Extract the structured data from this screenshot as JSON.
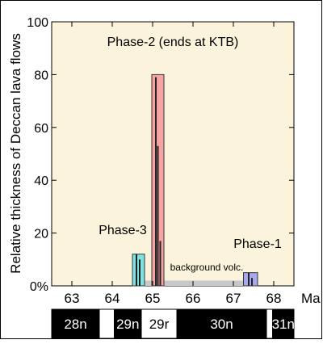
{
  "chart_data": {
    "type": "bar",
    "ylabel": "Relative thickness of Deccan lava flows",
    "x_unit": "Ma",
    "xlim": [
      62.5,
      68.5
    ],
    "ylim": [
      0,
      100
    ],
    "x_ticks": [
      63,
      64,
      65,
      66,
      67,
      68
    ],
    "x_tick_labels": [
      "63",
      "64",
      "65",
      "66",
      "67",
      "68"
    ],
    "y_ticks": [
      0,
      20,
      40,
      60,
      80,
      100
    ],
    "y_tick_labels": [
      "0%",
      "20",
      "40",
      "60",
      "80",
      "100"
    ],
    "background_color": "#fcf3dc",
    "grid": false,
    "bars": [
      {
        "name": "Phase-3",
        "label": "Phase-3",
        "x_start": 64.5,
        "x_end": 64.8,
        "value": 12,
        "fill": "#7fe3e3",
        "stroke": "#333333",
        "internal_lines": [
          {
            "x": 64.6,
            "value": 12
          },
          {
            "x": 64.68,
            "value": 10
          }
        ]
      },
      {
        "name": "Phase-2",
        "label": "Phase-2 (ends at KTB)",
        "x_start": 64.98,
        "x_end": 65.28,
        "value": 80,
        "fill": "#f5a3a3",
        "stroke": "#333333",
        "internal_lines": [
          {
            "x": 65.08,
            "value": 79
          },
          {
            "x": 65.13,
            "value": 53
          },
          {
            "x": 65.19,
            "value": 17
          }
        ]
      },
      {
        "name": "Phase-1",
        "label": "Phase-1",
        "x_start": 67.25,
        "x_end": 67.6,
        "value": 5,
        "fill": "#a8a8ef",
        "stroke": "#333333",
        "internal_lines": [
          {
            "x": 67.38,
            "value": 5
          },
          {
            "x": 67.46,
            "value": 3
          }
        ]
      }
    ],
    "background_volcanism": {
      "label": "background volc.",
      "x_start": 64.8,
      "x_end": 67.25,
      "value": 2,
      "color": "#c8c8c8"
    },
    "magnetic_chrons": [
      {
        "label": "28n",
        "x_start": 62.5,
        "x_end": 63.68,
        "polarity": "normal"
      },
      {
        "label": "",
        "x_start": 63.68,
        "x_end": 64.05,
        "polarity": "reversed"
      },
      {
        "label": "29n",
        "x_start": 64.05,
        "x_end": 64.72,
        "polarity": "normal"
      },
      {
        "label": "29r",
        "x_start": 64.72,
        "x_end": 65.6,
        "polarity": "reversed"
      },
      {
        "label": "30n",
        "x_start": 65.6,
        "x_end": 67.82,
        "polarity": "normal"
      },
      {
        "label": "",
        "x_start": 67.82,
        "x_end": 67.97,
        "polarity": "reversed"
      },
      {
        "label": "31n",
        "x_start": 67.97,
        "x_end": 68.5,
        "polarity": "normal"
      }
    ]
  }
}
